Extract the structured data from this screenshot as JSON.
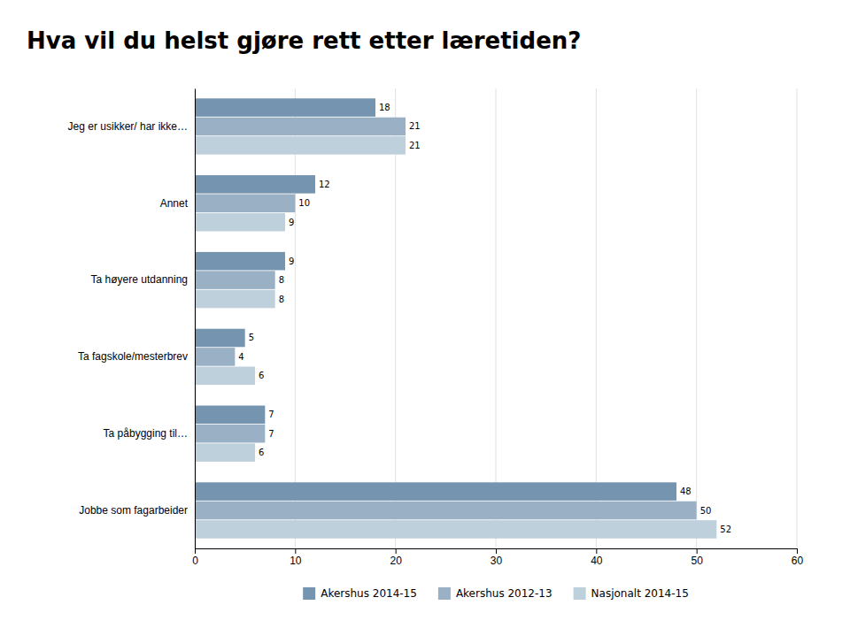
{
  "chart_data": {
    "type": "bar",
    "orientation": "horizontal",
    "title": "Hva vil du helst gjøre rett etter læretiden?",
    "categories": [
      "Jeg er usikker/ har ikke…",
      "Annet",
      "Ta høyere utdanning",
      "Ta fagskole/mesterbrev",
      "Ta påbygging til…",
      "Jobbe som fagarbeider"
    ],
    "series": [
      {
        "name": "Akershus 2014-15",
        "color": "#7494b0",
        "values": [
          18,
          12,
          9,
          5,
          7,
          48
        ]
      },
      {
        "name": "Akershus 2012-13",
        "color": "#9ab0c4",
        "values": [
          21,
          10,
          8,
          4,
          7,
          50
        ]
      },
      {
        "name": "Nasjonalt 2014-15",
        "color": "#bdd0dc",
        "values": [
          21,
          9,
          8,
          6,
          6,
          52
        ]
      }
    ],
    "xlim": [
      0,
      60
    ],
    "xticks": [
      0,
      10,
      20,
      30,
      40,
      50,
      60
    ],
    "grid": true,
    "data_labels": true,
    "legend": "bottom"
  }
}
